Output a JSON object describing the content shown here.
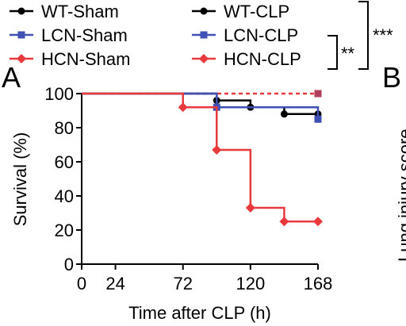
{
  "panel_labels": {
    "a": "A",
    "b": "B"
  },
  "legend": [
    {
      "label": "WT-Sham",
      "color": "#000000",
      "marker": "circle"
    },
    {
      "label": "WT-CLP",
      "color": "#000000",
      "marker": "circle"
    },
    {
      "label": "LCN-Sham",
      "color": "#3f51b5",
      "marker": "square"
    },
    {
      "label": "LCN-CLP",
      "color": "#3f51b5",
      "marker": "square"
    },
    {
      "label": "HCN-Sham",
      "color": "#e8393c",
      "marker": "diamond"
    },
    {
      "label": "HCN-CLP",
      "color": "#e8393c",
      "marker": "diamond"
    }
  ],
  "significance": {
    "inner": "**",
    "outer": "***"
  },
  "panel_b_ylabel_fragment": "Lung injury score",
  "chart_data": {
    "type": "line",
    "step": true,
    "xlabel": "Time after CLP (h)",
    "ylabel": "Survival (%)",
    "xlim": [
      0,
      168
    ],
    "ylim": [
      0,
      100
    ],
    "xticks": [
      0,
      24,
      72,
      120,
      168
    ],
    "yticks": [
      0,
      20,
      40,
      60,
      80,
      100
    ],
    "grid": false,
    "legend_position": "top",
    "series": [
      {
        "name": "Sham (WT, LCN, HCN)",
        "color": "#e8393c",
        "dashed": true,
        "x": [
          0,
          168
        ],
        "y": [
          100,
          100
        ]
      },
      {
        "name": "WT-CLP",
        "color": "#000000",
        "x": [
          0,
          96,
          120,
          144,
          168
        ],
        "y": [
          100,
          96,
          92,
          88,
          88
        ]
      },
      {
        "name": "LCN-CLP",
        "color": "#3f51b5",
        "x": [
          0,
          96,
          168
        ],
        "y": [
          100,
          92,
          85
        ]
      },
      {
        "name": "HCN-CLP",
        "color": "#e8393c",
        "x": [
          0,
          72,
          96,
          120,
          144,
          168
        ],
        "y": [
          100,
          92,
          67,
          33,
          25,
          25
        ]
      }
    ]
  }
}
